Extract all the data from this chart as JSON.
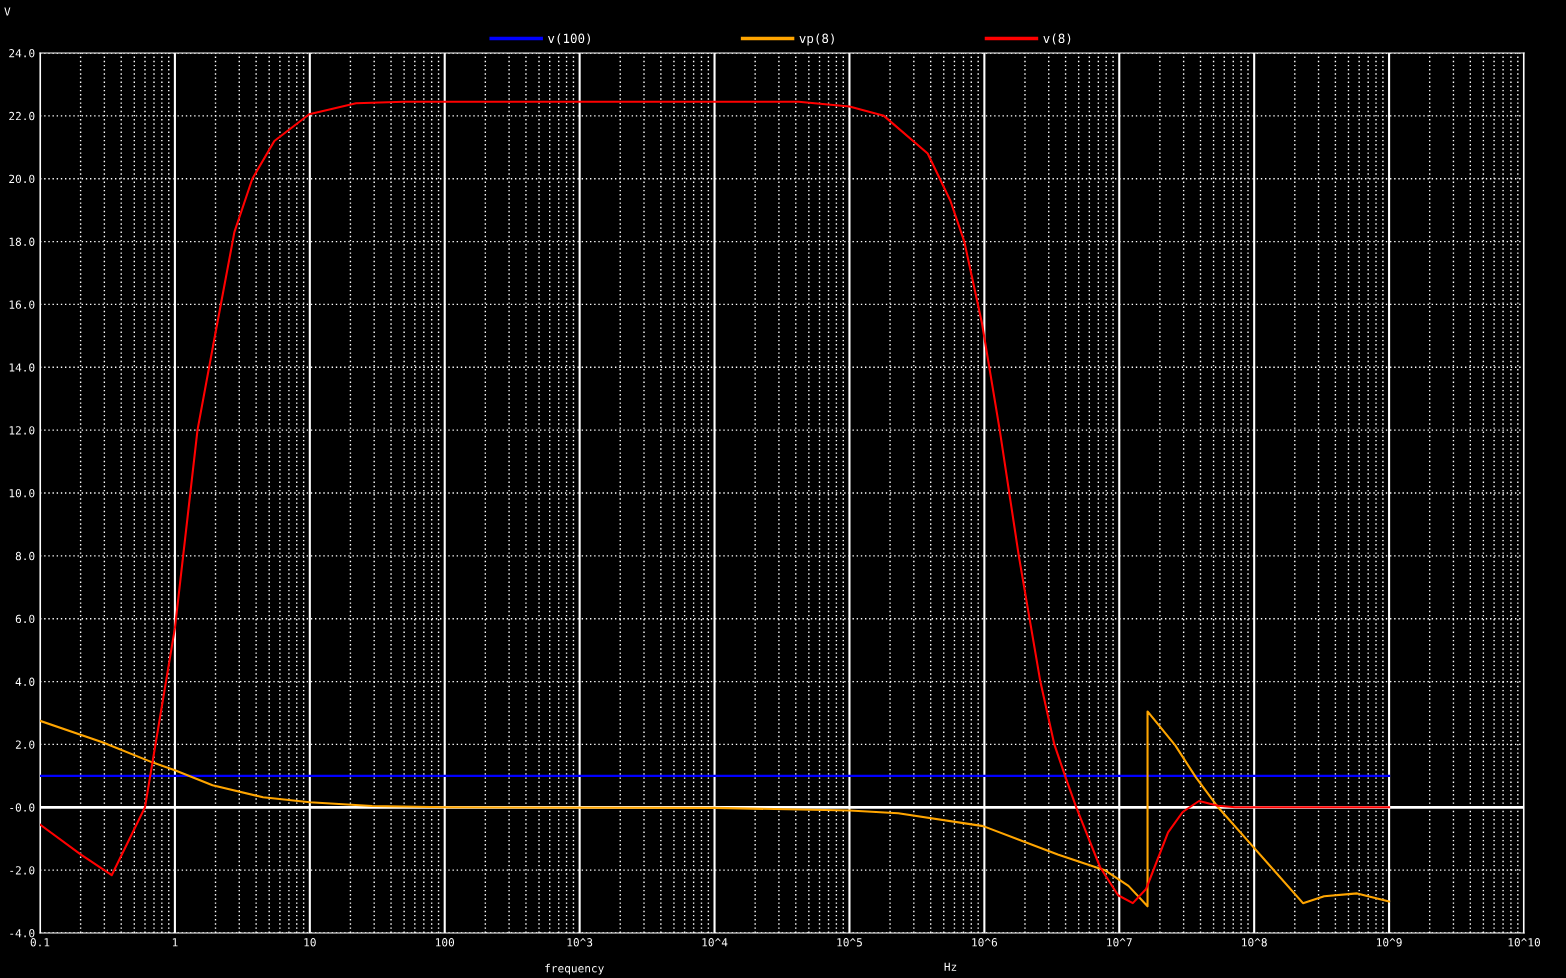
{
  "chart_data": {
    "type": "line",
    "ylabel": "V",
    "xlabel": "frequency",
    "annotations": [
      "Hz"
    ],
    "log": "x",
    "grid": true,
    "legend": "top",
    "line_style": "solid",
    "marker": "none",
    "xlim": [
      0.1,
      10000000000.0
    ],
    "xticks": [
      0.1,
      1,
      10,
      100,
      {
        "value": 1000,
        "label": "10^3"
      },
      {
        "value": 10000,
        "label": "10^4"
      },
      {
        "value": 100000,
        "label": "10^5"
      },
      {
        "value": 1000000,
        "label": "10^6"
      },
      {
        "value": 10000000,
        "label": "10^7"
      },
      {
        "value": 100000000,
        "label": "10^8"
      },
      {
        "value": 1000000000,
        "label": "10^9"
      },
      {
        "value": 10000000000,
        "label": "10^10"
      }
    ],
    "ylim": [
      -4,
      24
    ],
    "yticks": [
      {
        "value": -4,
        "label": "-4.0"
      },
      {
        "value": -2,
        "label": "-2.0"
      },
      {
        "value": 0,
        "label": "-0.0"
      },
      {
        "value": 2,
        "label": "2.0"
      },
      {
        "value": 4,
        "label": "4.0"
      },
      {
        "value": 6,
        "label": "6.0"
      },
      {
        "value": 8,
        "label": "8.0"
      },
      {
        "value": 10,
        "label": "10.0"
      },
      {
        "value": 12,
        "label": "12.0"
      },
      {
        "value": 14,
        "label": "14.0"
      },
      {
        "value": 16,
        "label": "16.0"
      },
      {
        "value": 18,
        "label": "18.0"
      },
      {
        "value": 20,
        "label": "20.0"
      },
      {
        "value": 22,
        "label": "22.0"
      },
      {
        "value": 24,
        "label": "24.0"
      }
    ],
    "ref_lines": [
      {
        "axis": "y",
        "value": 0,
        "color": "#ffffff",
        "line_style": "solid"
      }
    ],
    "series": [
      {
        "name": "v(100)",
        "color": "#0000ff",
        "x": [
          0.1,
          1000000000.0
        ],
        "values": [
          1.0,
          1.0
        ]
      },
      {
        "name": "vp(8)",
        "color": "#ffa500",
        "x": [
          0.1,
          0.29,
          0.68,
          1,
          1.9,
          4.5,
          10,
          29,
          100,
          10000.0,
          100000.0,
          230000.0,
          980000.0,
          3500000.0,
          7800000.0,
          11700000.0,
          16200000.0,
          16200000.0,
          26000000.0,
          37000000.0,
          54000000.0,
          98000000.0,
          230000000.0,
          330000000.0,
          580000000.0,
          1000000000.0
        ],
        "values": [
          2.75,
          2.07,
          1.43,
          1.18,
          0.7,
          0.32,
          0.16,
          0.04,
          0,
          -0.02,
          -0.1,
          -0.19,
          -0.6,
          -1.5,
          -2.0,
          -2.5,
          -3.15,
          3.05,
          1.97,
          0.95,
          0,
          -1.25,
          -3.05,
          -2.83,
          -2.74,
          -3.0
        ]
      },
      {
        "name": "v(8)",
        "color": "#ff0000",
        "x": [
          0.1,
          0.2,
          0.34,
          0.6,
          1.0,
          1.47,
          1.96,
          2.76,
          3.75,
          5.46,
          9.9,
          22,
          50,
          42000,
          100000.0,
          180000.0,
          380000.0,
          560000.0,
          710000.0,
          960000.0,
          1300000.0,
          1800000.0,
          2600000.0,
          3300000.0,
          4000000.0,
          4800000.0,
          7200000.0,
          9800000.0,
          12600000.0,
          15800000.0,
          23000000.0,
          29500000.0,
          39000000.0,
          54000000.0,
          72000000.0,
          1000000000.0
        ],
        "values": [
          -0.55,
          -1.5,
          -2.16,
          0,
          5.7,
          12,
          14.9,
          18.3,
          20.0,
          21.2,
          22.05,
          22.4,
          22.45,
          22.45,
          22.3,
          22.0,
          20.8,
          19.3,
          18.0,
          15.4,
          12,
          8,
          4,
          2.0,
          0.95,
          0,
          -1.9,
          -2.8,
          -3.05,
          -2.6,
          -0.8,
          -0.15,
          0.2,
          0.05,
          0,
          0
        ]
      }
    ]
  }
}
